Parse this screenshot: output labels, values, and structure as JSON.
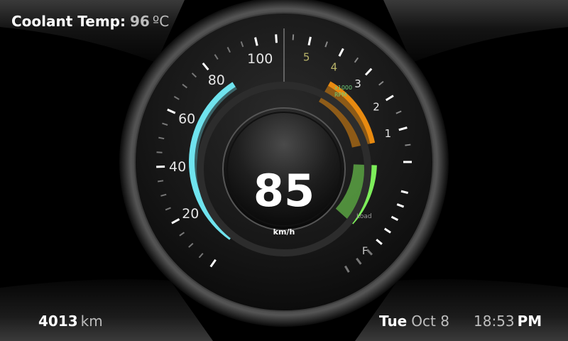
{
  "coolant": {
    "label": "Coolant Temp:",
    "value": "96",
    "unit": "ºC"
  },
  "odometer": {
    "value": "4013",
    "unit": "km"
  },
  "date": {
    "day": "Tue",
    "month_day": "Oct 8"
  },
  "clock": {
    "time": "18:53",
    "ampm": "PM"
  },
  "speedometer": {
    "speed": "85",
    "unit": "km/h",
    "ticks": [
      "20",
      "40",
      "60",
      "80",
      "100"
    ],
    "speed_fraction": 0.85
  },
  "tachometer": {
    "ticks": [
      "1",
      "2",
      "3",
      "4",
      "5"
    ],
    "multiplier": "x1000",
    "unit": "RPM",
    "rpm_value": 2.8
  },
  "load_gauge": {
    "label": "Load",
    "fraction": 0.5
  },
  "fuel_gauge": {
    "full_label": "F"
  },
  "colors": {
    "speed_arc": "#6fe3ee",
    "rpm_arc": "#e88a10",
    "load_arc": "#7dee5a",
    "background": "#000000"
  }
}
